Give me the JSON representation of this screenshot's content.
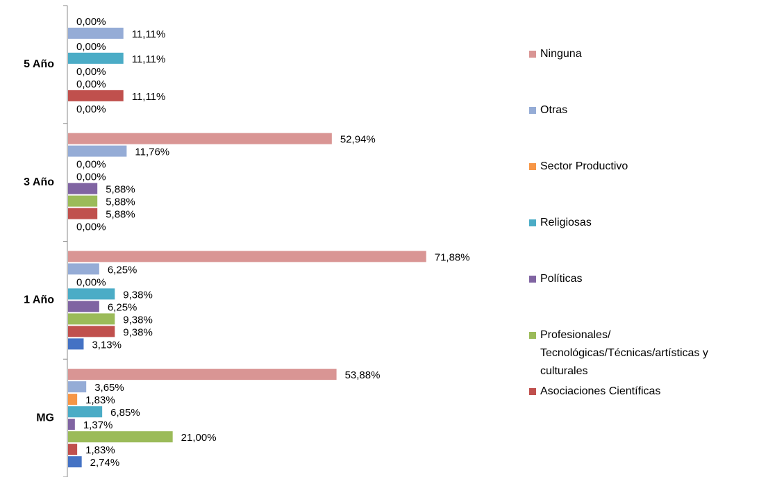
{
  "chart_data": {
    "type": "hbar",
    "categories": [
      "MG",
      "1 Año",
      "3 Año",
      "5 Año"
    ],
    "xlim": [
      0,
      80
    ],
    "series": [
      {
        "name": null,
        "color": "#4472c4",
        "values": [
          2.74,
          3.13,
          0,
          0
        ],
        "value_labels": [
          "2,74%",
          "3,13%",
          "0,00%",
          "0,00%"
        ]
      },
      {
        "name": "Asociaciones Científicas",
        "color": "#c0504d",
        "values": [
          1.83,
          9.38,
          5.88,
          11.11
        ],
        "value_labels": [
          "1,83%",
          "9,38%",
          "5,88%",
          "11,11%"
        ]
      },
      {
        "name": "Profesionales/ Tecnológicas/Técnicas/artísticas y culturales",
        "color": "#9bbb59",
        "values": [
          21.0,
          9.38,
          5.88,
          0
        ],
        "value_labels": [
          "21,00%",
          "9,38%",
          "5,88%",
          "0,00%"
        ]
      },
      {
        "name": "Políticas",
        "color": "#8064a2",
        "values": [
          1.37,
          6.25,
          5.88,
          0
        ],
        "value_labels": [
          "1,37%",
          "6,25%",
          "5,88%",
          "0,00%"
        ]
      },
      {
        "name": "Religiosas",
        "color": "#4bacc6",
        "values": [
          6.85,
          9.38,
          0,
          11.11
        ],
        "value_labels": [
          "6,85%",
          "9,38%",
          "0,00%",
          "11,11%"
        ]
      },
      {
        "name": "Sector Productivo",
        "color": "#f79646",
        "values": [
          1.83,
          0,
          0,
          0
        ],
        "value_labels": [
          "1,83%",
          "0,00%",
          "0,00%",
          "0,00%"
        ]
      },
      {
        "name": "Otras",
        "color": "#95acd6",
        "values": [
          3.65,
          6.25,
          11.76,
          11.11
        ],
        "value_labels": [
          "3,65%",
          "6,25%",
          "11,76%",
          "11,11%"
        ]
      },
      {
        "name": "Ninguna",
        "color": "#d99594",
        "values": [
          53.88,
          71.88,
          52.94,
          0
        ],
        "value_labels": [
          "53,88%",
          "71,88%",
          "52,94%",
          "0,00%"
        ]
      }
    ]
  }
}
